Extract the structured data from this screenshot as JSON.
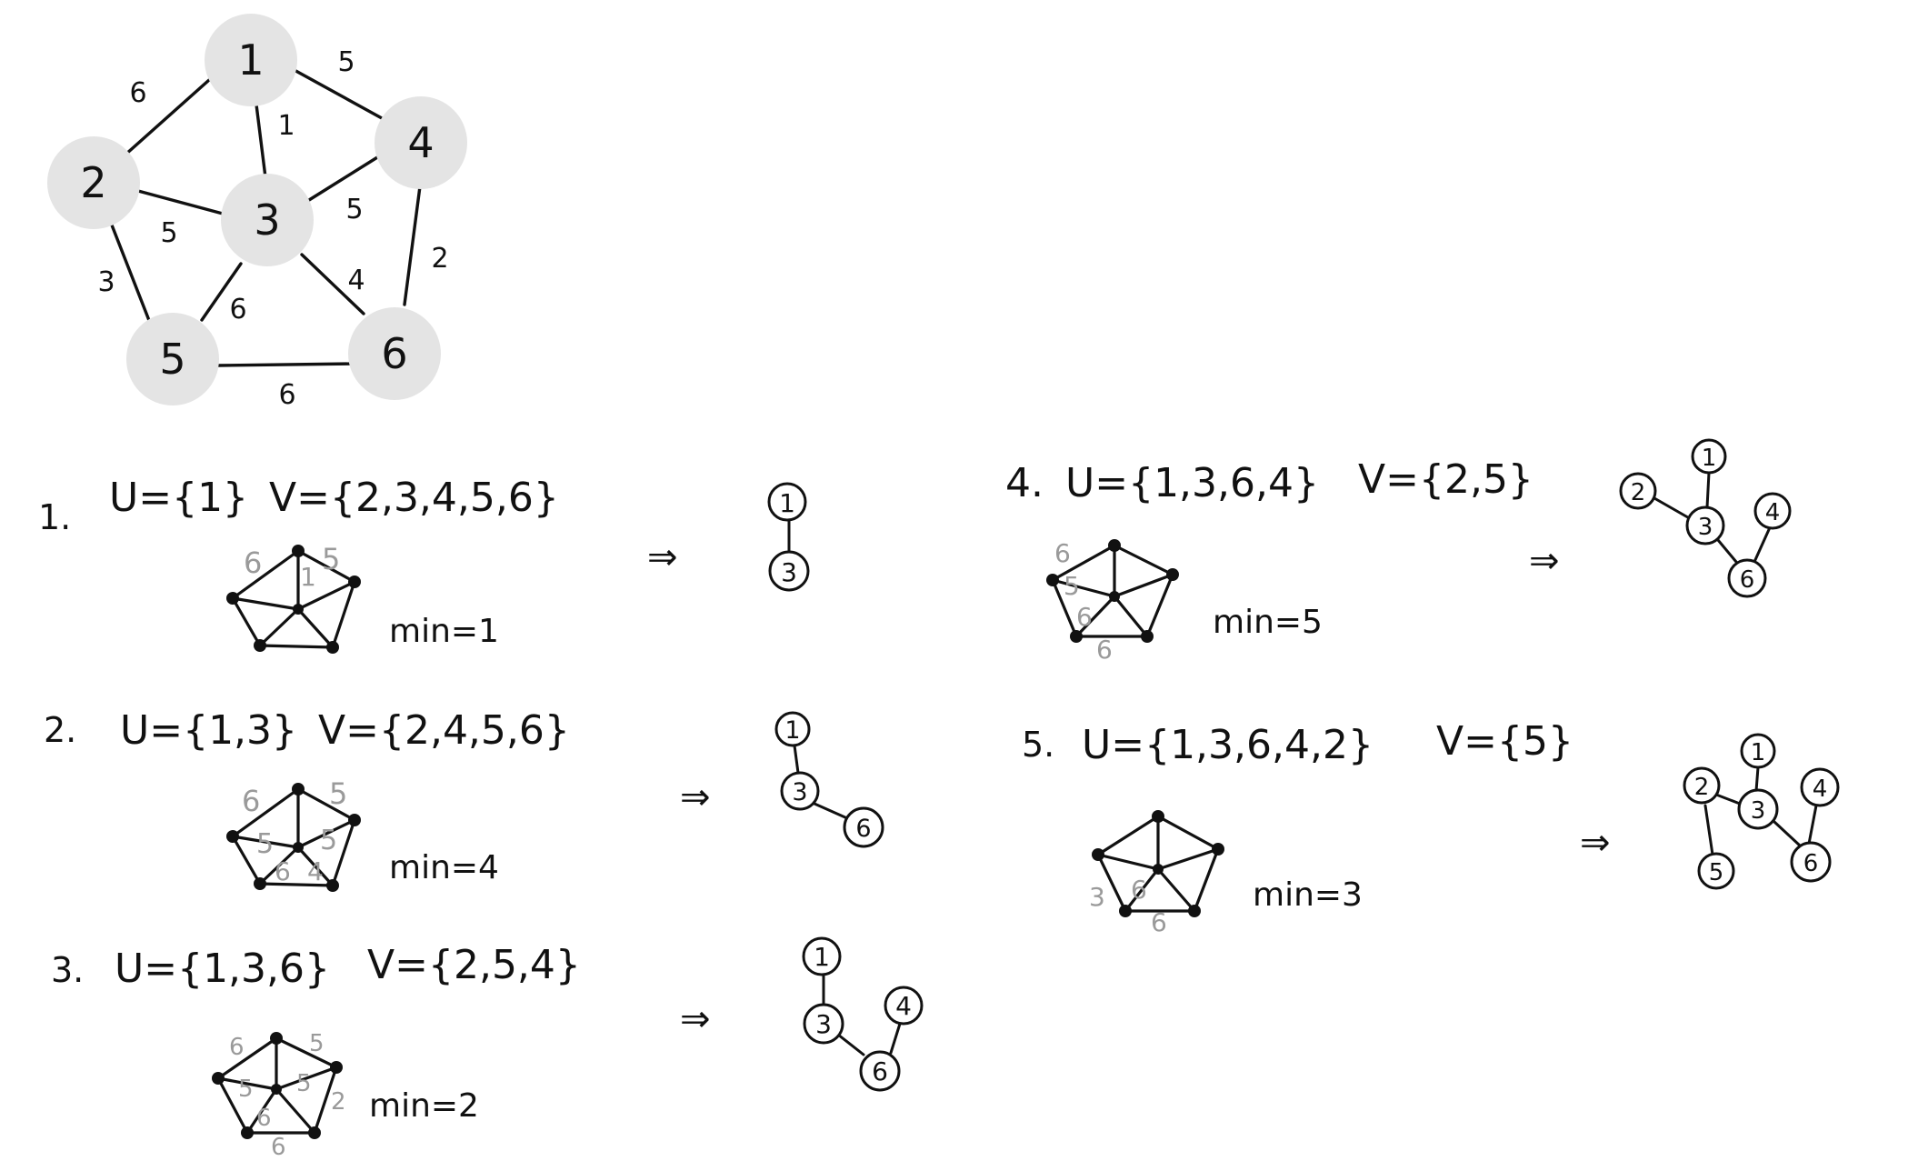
{
  "main_graph": {
    "nodes": [
      "1",
      "2",
      "3",
      "4",
      "5",
      "6"
    ],
    "edges": [
      {
        "from": "1",
        "to": "2",
        "weight": "6"
      },
      {
        "from": "1",
        "to": "4",
        "weight": "5"
      },
      {
        "from": "1",
        "to": "3",
        "weight": "1"
      },
      {
        "from": "2",
        "to": "3",
        "weight": "5"
      },
      {
        "from": "3",
        "to": "4",
        "weight": "5"
      },
      {
        "from": "2",
        "to": "5",
        "weight": "3"
      },
      {
        "from": "3",
        "to": "5",
        "weight": "6"
      },
      {
        "from": "3",
        "to": "6",
        "weight": "4"
      },
      {
        "from": "4",
        "to": "6",
        "weight": "2"
      },
      {
        "from": "5",
        "to": "6",
        "weight": "6"
      }
    ]
  },
  "steps": [
    {
      "number": "1.",
      "u_set": "U={1}",
      "v_set": "V={2,3,4,5,6}",
      "min_label": "min=1",
      "candidate_weights": [
        "6",
        "5",
        "1"
      ],
      "tree_nodes": [
        "1",
        "3"
      ]
    },
    {
      "number": "2.",
      "u_set": "U={1,3}",
      "v_set": "V={2,4,5,6}",
      "min_label": "min=4",
      "candidate_weights": [
        "6",
        "5",
        "5",
        "5",
        "6",
        "4"
      ],
      "tree_nodes": [
        "1",
        "3",
        "6"
      ]
    },
    {
      "number": "3.",
      "u_set": "U={1,3,6}",
      "v_set": "V={2,5,4}",
      "min_label": "min=2",
      "candidate_weights": [
        "6",
        "5",
        "5",
        "5",
        "6",
        "6",
        "2"
      ],
      "tree_nodes": [
        "1",
        "3",
        "6",
        "4"
      ]
    },
    {
      "number": "4.",
      "u_set": "U={1,3,6,4}",
      "v_set": "V={2,5}",
      "min_label": "min=5",
      "candidate_weights": [
        "6",
        "5",
        "6",
        "6"
      ],
      "tree_nodes": [
        "1",
        "2",
        "3",
        "4",
        "6"
      ]
    },
    {
      "number": "5.",
      "u_set": "U={1,3,6,4,2}",
      "v_set": "V={5}",
      "min_label": "min=3",
      "candidate_weights": [
        "3",
        "6",
        "6"
      ],
      "tree_nodes": [
        "1",
        "2",
        "3",
        "4",
        "5",
        "6"
      ]
    }
  ],
  "arrow_symbol": "⇒"
}
